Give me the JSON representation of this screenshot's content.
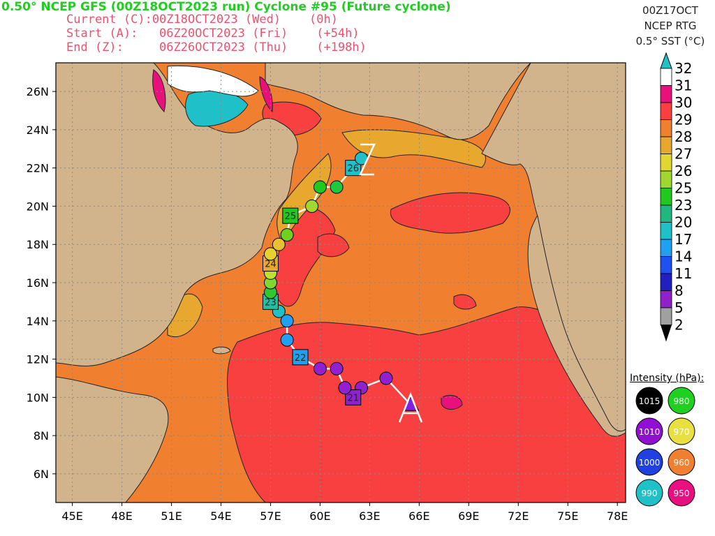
{
  "header": {
    "title": "0.50° NCEP GFS (00Z18OCT2023 run) Cyclone #95 (Future cyclone)",
    "current": "Current (C):00Z18OCT2023 (Wed)    (0h)",
    "start": "Start (A):   06Z20OCT2023 (Fri)    (+54h)",
    "end": "End (Z):     06Z26OCT2023 (Thu)    (+198h)"
  },
  "top_right": {
    "line1": "00Z17OCT",
    "line2": "NCEP RTG",
    "line3": "0.5° SST (°C)"
  },
  "colorbar": {
    "labels": [
      "32",
      "31",
      "30",
      "29",
      "28",
      "27",
      "26",
      "25",
      "23",
      "20",
      "17",
      "14",
      "11",
      "8",
      "5",
      "2"
    ],
    "colors": [
      "#20c0c8",
      "#ffffff",
      "#e8107a",
      "#f84040",
      "#f08030",
      "#e8a830",
      "#e0d830",
      "#a0d830",
      "#20c820",
      "#20b880",
      "#20c0c8",
      "#20a0f0",
      "#2050f0",
      "#2020c0",
      "#9020c8",
      "#a0a0a0"
    ]
  },
  "intensity": {
    "title": "Intensity (hPa):",
    "items": [
      {
        "label": "1015",
        "color": "#000000"
      },
      {
        "label": "980",
        "color": "#20d020"
      },
      {
        "label": "1010",
        "color": "#9010d0"
      },
      {
        "label": "970",
        "color": "#e8e040"
      },
      {
        "label": "1000",
        "color": "#2040e0"
      },
      {
        "label": "960",
        "color": "#f08030"
      },
      {
        "label": "990",
        "color": "#20c0c8"
      },
      {
        "label": "950",
        "color": "#e81080"
      }
    ]
  },
  "axes": {
    "lon_labels": [
      "45E",
      "48E",
      "51E",
      "54E",
      "57E",
      "60E",
      "63E",
      "66E",
      "69E",
      "72E",
      "75E",
      "78E"
    ],
    "lat_labels": [
      "26N",
      "24N",
      "22N",
      "20N",
      "18N",
      "16N",
      "14N",
      "12N",
      "10N",
      "8N",
      "6N"
    ]
  },
  "track": {
    "markers": [
      {
        "lon": 65.5,
        "lat": 9.6,
        "shape": "triangle",
        "color": "#8020e0",
        "label": ""
      },
      {
        "lon": 64.0,
        "lat": 11.0,
        "shape": "circle",
        "color": "#9020d0",
        "label": ""
      },
      {
        "lon": 62.5,
        "lat": 10.5,
        "shape": "circle",
        "color": "#9020d0",
        "label": ""
      },
      {
        "lon": 62.0,
        "lat": 10.0,
        "shape": "square",
        "color": "#9020d0",
        "label": "21"
      },
      {
        "lon": 61.5,
        "lat": 10.5,
        "shape": "circle",
        "color": "#9020d0",
        "label": ""
      },
      {
        "lon": 61.0,
        "lat": 11.5,
        "shape": "circle",
        "color": "#9020d0",
        "label": ""
      },
      {
        "lon": 60.0,
        "lat": 11.5,
        "shape": "circle",
        "color": "#9020d0",
        "label": ""
      },
      {
        "lon": 58.8,
        "lat": 12.1,
        "shape": "square",
        "color": "#20a0f0",
        "label": "22"
      },
      {
        "lon": 58.0,
        "lat": 13.0,
        "shape": "circle",
        "color": "#20a0f0",
        "label": ""
      },
      {
        "lon": 58.0,
        "lat": 14.0,
        "shape": "circle",
        "color": "#20a0f0",
        "label": ""
      },
      {
        "lon": 57.5,
        "lat": 14.5,
        "shape": "circle",
        "color": "#20c0c8",
        "label": ""
      },
      {
        "lon": 57.0,
        "lat": 15.0,
        "shape": "square",
        "color": "#20c0a0",
        "label": "23"
      },
      {
        "lon": 57.0,
        "lat": 15.5,
        "shape": "circle",
        "color": "#30c830",
        "label": ""
      },
      {
        "lon": 57.0,
        "lat": 16.0,
        "shape": "circle",
        "color": "#80d830",
        "label": ""
      },
      {
        "lon": 57.0,
        "lat": 16.5,
        "shape": "circle",
        "color": "#c0e030",
        "label": ""
      },
      {
        "lon": 57.0,
        "lat": 17.0,
        "shape": "square",
        "color": "#e8a830",
        "label": "24"
      },
      {
        "lon": 57.0,
        "lat": 17.5,
        "shape": "circle",
        "color": "#e8d030",
        "label": ""
      },
      {
        "lon": 57.5,
        "lat": 18.0,
        "shape": "circle",
        "color": "#e8c030",
        "label": ""
      },
      {
        "lon": 58.0,
        "lat": 18.5,
        "shape": "circle",
        "color": "#70d020",
        "label": ""
      },
      {
        "lon": 58.2,
        "lat": 19.5,
        "shape": "square",
        "color": "#20c820",
        "label": "25"
      },
      {
        "lon": 59.5,
        "lat": 20.0,
        "shape": "circle",
        "color": "#a0d830",
        "label": ""
      },
      {
        "lon": 60.0,
        "lat": 21.0,
        "shape": "circle",
        "color": "#20c820",
        "label": ""
      },
      {
        "lon": 61.0,
        "lat": 21.0,
        "shape": "circle",
        "color": "#20c840",
        "label": ""
      },
      {
        "lon": 62.0,
        "lat": 22.0,
        "shape": "square",
        "color": "#20c0c8",
        "label": "26"
      },
      {
        "lon": 62.5,
        "lat": 22.5,
        "shape": "circle",
        "color": "#20c0c8",
        "label": ""
      }
    ]
  }
}
